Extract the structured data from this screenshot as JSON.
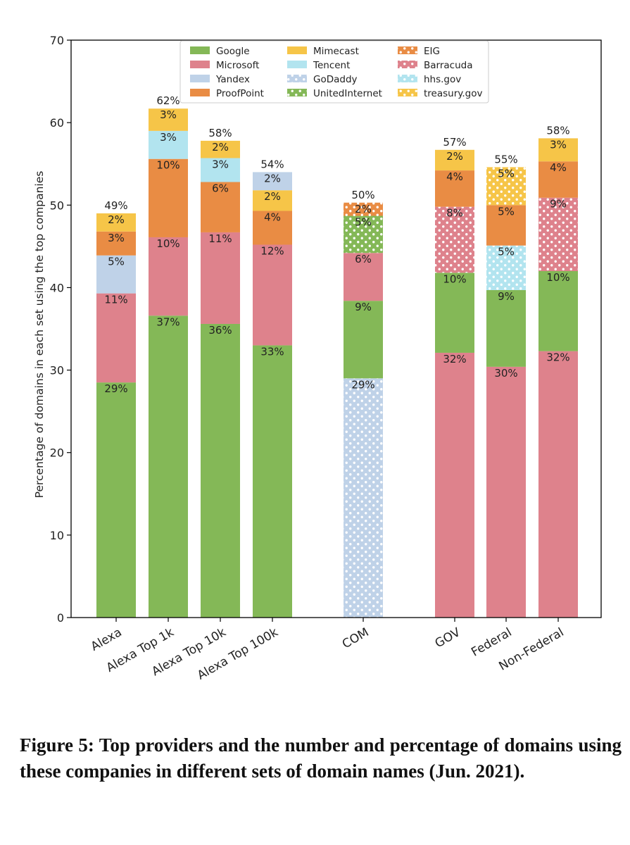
{
  "chart_data": {
    "type": "bar",
    "stacked": true,
    "title": "",
    "xlabel": "",
    "ylabel": "Percentage of domains in each set using the top companies",
    "ylim": [
      0,
      70
    ],
    "yticks": [
      0,
      10,
      20,
      30,
      40,
      50,
      60,
      70
    ],
    "grid": false,
    "legend_position": "top-center",
    "legend_columns": 3,
    "legend": [
      {
        "name": "Google",
        "color": "#84b857",
        "pattern": "solid"
      },
      {
        "name": "Microsoft",
        "color": "#de828c",
        "pattern": "solid"
      },
      {
        "name": "Yandex",
        "color": "#bfd2e8",
        "pattern": "solid"
      },
      {
        "name": "ProofPoint",
        "color": "#e98c44",
        "pattern": "solid"
      },
      {
        "name": "Mimecast",
        "color": "#f6c548",
        "pattern": "solid"
      },
      {
        "name": "Tencent",
        "color": "#b2e4ef",
        "pattern": "solid"
      },
      {
        "name": "GoDaddy",
        "color": "#bfd2e8",
        "pattern": "dots"
      },
      {
        "name": "UnitedInternet",
        "color": "#84b857",
        "pattern": "dots"
      },
      {
        "name": "EIG",
        "color": "#e98c44",
        "pattern": "dots"
      },
      {
        "name": "Barracuda",
        "color": "#de828c",
        "pattern": "dots"
      },
      {
        "name": "hhs.gov",
        "color": "#b2e4ef",
        "pattern": "dots"
      },
      {
        "name": "treasury.gov",
        "color": "#f6c548",
        "pattern": "dots"
      }
    ],
    "bars": [
      {
        "category": "Alexa",
        "total_label": "49%",
        "segments": [
          {
            "provider": "Google",
            "value": 28.5,
            "label": "29%"
          },
          {
            "provider": "Microsoft",
            "value": 10.8,
            "label": "11%"
          },
          {
            "provider": "Yandex",
            "value": 4.6,
            "label": "5%"
          },
          {
            "provider": "ProofPoint",
            "value": 2.9,
            "label": "3%"
          },
          {
            "provider": "Mimecast",
            "value": 2.2,
            "label": "2%"
          }
        ]
      },
      {
        "category": "Alexa Top 1k",
        "total_label": "62%",
        "segments": [
          {
            "provider": "Google",
            "value": 36.6,
            "label": "37%"
          },
          {
            "provider": "Microsoft",
            "value": 9.5,
            "label": "10%"
          },
          {
            "provider": "ProofPoint",
            "value": 9.5,
            "label": "10%"
          },
          {
            "provider": "Tencent",
            "value": 3.4,
            "label": "3%"
          },
          {
            "provider": "Mimecast",
            "value": 2.7,
            "label": "3%"
          }
        ]
      },
      {
        "category": "Alexa Top 10k",
        "total_label": "58%",
        "segments": [
          {
            "provider": "Google",
            "value": 35.6,
            "label": "36%"
          },
          {
            "provider": "Microsoft",
            "value": 11.1,
            "label": "11%"
          },
          {
            "provider": "ProofPoint",
            "value": 6.1,
            "label": "6%"
          },
          {
            "provider": "Tencent",
            "value": 2.9,
            "label": "3%"
          },
          {
            "provider": "Mimecast",
            "value": 2.1,
            "label": "2%"
          }
        ]
      },
      {
        "category": "Alexa Top 100k",
        "total_label": "54%",
        "segments": [
          {
            "provider": "Google",
            "value": 33.0,
            "label": "33%"
          },
          {
            "provider": "Microsoft",
            "value": 12.2,
            "label": "12%"
          },
          {
            "provider": "ProofPoint",
            "value": 4.1,
            "label": "4%"
          },
          {
            "provider": "Mimecast",
            "value": 2.5,
            "label": "2%"
          },
          {
            "provider": "Yandex",
            "value": 2.2,
            "label": "2%"
          }
        ]
      },
      {
        "category": "COM",
        "total_label": "50%",
        "segments": [
          {
            "provider": "GoDaddy",
            "value": 29.0,
            "label": "29%"
          },
          {
            "provider": "Google",
            "value": 9.4,
            "label": "9%"
          },
          {
            "provider": "Microsoft",
            "value": 5.8,
            "label": "6%"
          },
          {
            "provider": "UnitedInternet",
            "value": 4.5,
            "label": "5%"
          },
          {
            "provider": "EIG",
            "value": 1.6,
            "label": "2%"
          }
        ]
      },
      {
        "category": "GOV",
        "total_label": "57%",
        "segments": [
          {
            "provider": "Microsoft",
            "value": 32.1,
            "label": "32%"
          },
          {
            "provider": "Google",
            "value": 9.7,
            "label": "10%"
          },
          {
            "provider": "Barracuda",
            "value": 8.0,
            "label": "8%"
          },
          {
            "provider": "ProofPoint",
            "value": 4.4,
            "label": "4%"
          },
          {
            "provider": "Mimecast",
            "value": 2.5,
            "label": "2%"
          }
        ]
      },
      {
        "category": "Federal",
        "total_label": "55%",
        "segments": [
          {
            "provider": "Microsoft",
            "value": 30.4,
            "label": "30%"
          },
          {
            "provider": "Google",
            "value": 9.3,
            "label": "9%"
          },
          {
            "provider": "hhs.gov",
            "value": 5.4,
            "label": "5%"
          },
          {
            "provider": "ProofPoint",
            "value": 4.9,
            "label": "5%"
          },
          {
            "provider": "treasury.gov",
            "value": 4.6,
            "label": "5%"
          }
        ]
      },
      {
        "category": "Non-Federal",
        "total_label": "58%",
        "segments": [
          {
            "provider": "Microsoft",
            "value": 32.3,
            "label": "32%"
          },
          {
            "provider": "Google",
            "value": 9.7,
            "label": "10%"
          },
          {
            "provider": "Barracuda",
            "value": 8.9,
            "label": "9%"
          },
          {
            "provider": "ProofPoint",
            "value": 4.4,
            "label": "4%"
          },
          {
            "provider": "Mimecast",
            "value": 2.8,
            "label": "3%"
          }
        ]
      }
    ]
  },
  "caption": "Figure 5: Top providers and the number and percentage of domains using these companies in different sets of domain names (Jun. 2021)."
}
